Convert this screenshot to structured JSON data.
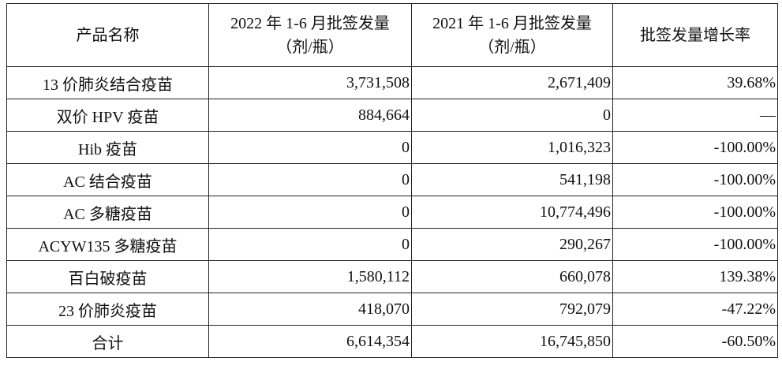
{
  "table": {
    "header": [
      [
        "产品名称"
      ],
      [
        "2022 年 1-6 月批签发量",
        "（剂/瓶）"
      ],
      [
        "2021 年 1-6 月批签发量",
        "（剂/瓶）"
      ],
      [
        "批签发量增长率"
      ]
    ],
    "rows": [
      [
        "13 价肺炎结合疫苗",
        "3,731,508",
        "2,671,409",
        "39.68%"
      ],
      [
        "双价 HPV 疫苗",
        "884,664",
        "0",
        "—"
      ],
      [
        "Hib 疫苗",
        "0",
        "1,016,323",
        "-100.00%"
      ],
      [
        "AC 结合疫苗",
        "0",
        "541,198",
        "-100.00%"
      ],
      [
        "AC 多糖疫苗",
        "0",
        "10,774,496",
        "-100.00%"
      ],
      [
        "ACYW135 多糖疫苗",
        "0",
        "290,267",
        "-100.00%"
      ],
      [
        "百白破疫苗",
        "1,580,112",
        "660,078",
        "139.38%"
      ],
      [
        "23 价肺炎疫苗",
        "418,070",
        "792,079",
        "-47.22%"
      ],
      [
        "合计",
        "6,614,354",
        "16,745,850",
        "-60.50%"
      ]
    ]
  }
}
